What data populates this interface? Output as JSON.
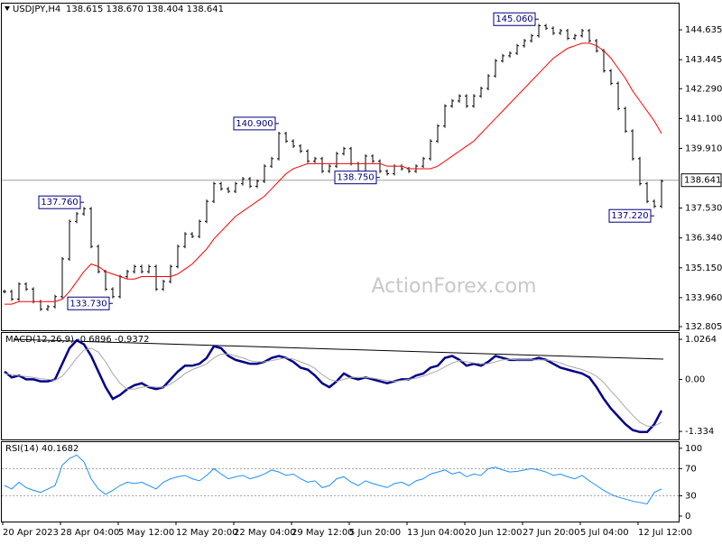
{
  "chart_data": [
    {
      "type": "line",
      "title": "USDJPY,H4",
      "subtitle": "138.615 138.670 138.404 138.641",
      "watermark": "ActionForex.com",
      "ylim": [
        132.66,
        145.68
      ],
      "yticks": [
        132.805,
        {
          "value": 133.96,
          "label": "133.960"
        },
        {
          "value": 135.15,
          "label": "135.150"
        },
        {
          "value": 136.34,
          "label": "136.340"
        },
        {
          "value": 137.53,
          "label": "137.530"
        },
        {
          "value": 139.91,
          "label": "139.910"
        },
        {
          "value": 141.1,
          "label": "141.100"
        },
        {
          "value": 142.29,
          "label": "142.290"
        },
        {
          "value": 143.445,
          "label": "143.445"
        },
        144.635
      ],
      "last": 138.641,
      "series": [
        {
          "color": "#000000",
          "style": "bars",
          "values": [
            134.2,
            133.9,
            134.5,
            134.3,
            133.8,
            133.5,
            133.6,
            134.0,
            135.5,
            137.0,
            137.3,
            137.5,
            136.0,
            135.0,
            134.3,
            134.0,
            134.8,
            135.0,
            135.2,
            135.0,
            135.2,
            134.3,
            134.6,
            135.2,
            136.0,
            136.5,
            136.4,
            137.0,
            137.8,
            138.5,
            138.3,
            138.2,
            138.5,
            138.7,
            138.4,
            138.6,
            139.2,
            139.5,
            140.5,
            140.2,
            140.0,
            139.8,
            139.4,
            139.5,
            139.0,
            139.2,
            139.7,
            139.9,
            139.3,
            139.0,
            139.6,
            139.4,
            139.0,
            138.9,
            139.2,
            139.1,
            139.0,
            139.2,
            139.5,
            140.2,
            140.8,
            141.6,
            141.8,
            142.0,
            141.6,
            142.0,
            142.3,
            142.8,
            143.4,
            143.6,
            143.7,
            144.0,
            144.2,
            144.4,
            144.8,
            144.7,
            144.5,
            144.6,
            144.3,
            144.4,
            144.6,
            144.2,
            143.8,
            143.0,
            142.5,
            141.5,
            140.6,
            139.5,
            138.5,
            137.8,
            137.6,
            138.6
          ]
        },
        {
          "color": "#ff0000",
          "style": "line",
          "values": [
            133.7,
            133.7,
            133.8,
            133.8,
            133.8,
            133.8,
            133.8,
            133.8,
            133.9,
            134.2,
            134.6,
            135.0,
            135.3,
            135.2,
            135.0,
            134.9,
            134.8,
            134.7,
            134.7,
            134.8,
            134.8,
            134.8,
            134.8,
            134.8,
            134.9,
            135.1,
            135.3,
            135.6,
            135.9,
            136.3,
            136.6,
            136.9,
            137.2,
            137.4,
            137.6,
            137.8,
            138.0,
            138.3,
            138.6,
            138.9,
            139.1,
            139.2,
            139.3,
            139.3,
            139.3,
            139.3,
            139.3,
            139.3,
            139.3,
            139.3,
            139.3,
            139.3,
            139.3,
            139.2,
            139.2,
            139.2,
            139.1,
            139.1,
            139.1,
            139.1,
            139.2,
            139.4,
            139.6,
            139.8,
            140.0,
            140.2,
            140.5,
            140.8,
            141.1,
            141.4,
            141.7,
            142.0,
            142.3,
            142.6,
            142.9,
            143.2,
            143.5,
            143.7,
            143.9,
            144.0,
            144.1,
            144.1,
            144.0,
            143.8,
            143.5,
            143.1,
            142.7,
            142.2,
            141.8,
            141.4,
            141.0,
            140.5
          ]
        }
      ],
      "annotations": [
        {
          "bar_index": 11,
          "value": 137.76,
          "label": "137.760"
        },
        {
          "bar_index": 15,
          "value": 133.73,
          "label": "133.730"
        },
        {
          "bar_index": 38,
          "value": 140.9,
          "label": "140.900"
        },
        {
          "bar_index": 52,
          "value": 138.75,
          "label": "138.750"
        },
        {
          "bar_index": 74,
          "value": 145.06,
          "label": "145.060"
        },
        {
          "bar_index": 90,
          "value": 137.22,
          "label": "137.220"
        }
      ]
    },
    {
      "type": "line",
      "title": "MACD(12,26,9) -0.6896 -0.9372",
      "ylim": [
        -1.54,
        1.19
      ],
      "yticks": [
        -1.334,
        {
          "value": 0,
          "label": "0.00"
        },
        1.0264
      ],
      "series": [
        {
          "color": "#00008b",
          "width": 2.5,
          "values": [
            0.2,
            0.05,
            0.1,
            0.0,
            0.0,
            -0.05,
            -0.05,
            0.0,
            0.4,
            0.8,
            1.0,
            0.9,
            0.6,
            0.2,
            -0.2,
            -0.5,
            -0.4,
            -0.25,
            -0.15,
            -0.1,
            -0.2,
            -0.25,
            -0.2,
            0.0,
            0.2,
            0.35,
            0.35,
            0.4,
            0.55,
            0.85,
            0.8,
            0.6,
            0.5,
            0.45,
            0.4,
            0.4,
            0.45,
            0.55,
            0.6,
            0.55,
            0.45,
            0.3,
            0.25,
            0.1,
            -0.1,
            -0.2,
            -0.05,
            0.15,
            0.05,
            0.0,
            0.05,
            0.0,
            -0.05,
            -0.1,
            -0.05,
            0.0,
            0.0,
            0.1,
            0.15,
            0.3,
            0.35,
            0.55,
            0.6,
            0.5,
            0.35,
            0.4,
            0.35,
            0.45,
            0.6,
            0.55,
            0.5,
            0.5,
            0.5,
            0.5,
            0.55,
            0.5,
            0.4,
            0.3,
            0.25,
            0.2,
            0.15,
            0.05,
            -0.2,
            -0.5,
            -0.75,
            -0.95,
            -1.15,
            -1.3,
            -1.35,
            -1.35,
            -1.15,
            -0.8
          ]
        },
        {
          "color": "#a8a8a8",
          "width": 1,
          "values": [
            0.15,
            0.12,
            0.1,
            0.07,
            0.05,
            0.02,
            0.0,
            -0.02,
            0.08,
            0.3,
            0.55,
            0.75,
            0.8,
            0.7,
            0.45,
            0.15,
            -0.1,
            -0.25,
            -0.25,
            -0.2,
            -0.18,
            -0.2,
            -0.2,
            -0.12,
            0.0,
            0.15,
            0.25,
            0.32,
            0.4,
            0.55,
            0.65,
            0.65,
            0.6,
            0.55,
            0.48,
            0.45,
            0.45,
            0.48,
            0.52,
            0.55,
            0.52,
            0.45,
            0.38,
            0.28,
            0.12,
            0.0,
            -0.05,
            0.0,
            0.05,
            0.05,
            0.05,
            0.03,
            0.0,
            -0.03,
            -0.05,
            -0.03,
            0.0,
            0.03,
            0.08,
            0.15,
            0.22,
            0.32,
            0.42,
            0.48,
            0.45,
            0.42,
            0.4,
            0.4,
            0.45,
            0.5,
            0.52,
            0.5,
            0.5,
            0.5,
            0.5,
            0.5,
            0.47,
            0.42,
            0.35,
            0.3,
            0.25,
            0.18,
            0.08,
            -0.08,
            -0.3,
            -0.5,
            -0.72,
            -0.92,
            -1.1,
            -1.2,
            -1.2,
            -1.1
          ]
        }
      ]
    },
    {
      "type": "line",
      "title": "RSI(14) 40.1682",
      "ylim": [
        -8,
        109
      ],
      "yticks": [
        0,
        30,
        70,
        100
      ],
      "levels": [
        30,
        70
      ],
      "categories": [
        "20 Apr 2023",
        null,
        null,
        null,
        null,
        null,
        null,
        null,
        "28 Apr 04:00",
        null,
        null,
        null,
        null,
        null,
        null,
        null,
        "5 May 12:00",
        null,
        null,
        null,
        null,
        null,
        null,
        null,
        "12 May 20:00",
        null,
        null,
        null,
        null,
        null,
        null,
        null,
        "22 May 04:00",
        null,
        null,
        null,
        null,
        null,
        null,
        null,
        "29 May 12:00",
        null,
        null,
        null,
        null,
        null,
        null,
        null,
        "5 Jun 20:00",
        null,
        null,
        null,
        null,
        null,
        null,
        null,
        "13 Jun 04:00",
        null,
        null,
        null,
        null,
        null,
        null,
        null,
        "20 Jun 12:00",
        null,
        null,
        null,
        null,
        null,
        null,
        null,
        "27 Jun 20:00",
        null,
        null,
        null,
        null,
        null,
        null,
        null,
        "5 Jul 04:00",
        null,
        null,
        null,
        null,
        null,
        null,
        null,
        "12 Jul 12:00",
        null,
        null,
        null
      ],
      "series": [
        {
          "color": "#1e90ff",
          "width": 1,
          "values": [
            45,
            40,
            50,
            42,
            38,
            35,
            40,
            45,
            75,
            85,
            90,
            80,
            55,
            40,
            32,
            38,
            45,
            50,
            48,
            50,
            45,
            40,
            50,
            55,
            58,
            60,
            55,
            52,
            60,
            70,
            62,
            55,
            58,
            60,
            55,
            58,
            62,
            68,
            65,
            60,
            62,
            55,
            50,
            52,
            42,
            45,
            55,
            58,
            50,
            45,
            52,
            48,
            45,
            42,
            48,
            50,
            45,
            52,
            55,
            62,
            65,
            68,
            62,
            65,
            58,
            62,
            60,
            70,
            72,
            68,
            65,
            66,
            68,
            70,
            68,
            65,
            60,
            62,
            58,
            55,
            60,
            52,
            45,
            38,
            32,
            28,
            25,
            22,
            20,
            18,
            35,
            40
          ]
        }
      ]
    }
  ]
}
